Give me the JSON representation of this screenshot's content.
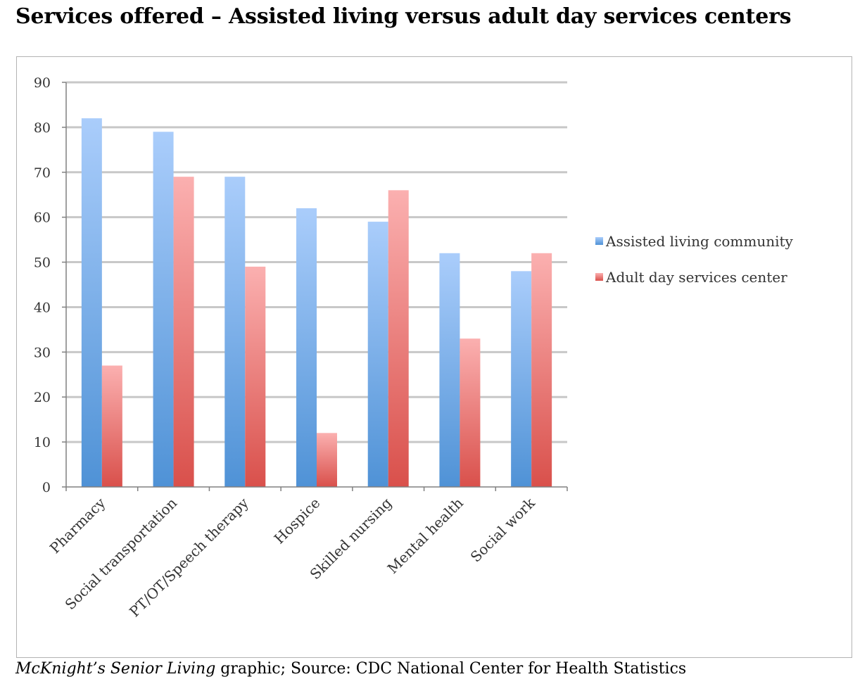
{
  "title": "Services offered – Assisted living versus adult day services centers",
  "caption": {
    "publication": "McKnight’s Senior Living",
    "text": " graphic; Source: CDC National Center for Health Statistics"
  },
  "chart_data": {
    "type": "bar",
    "categories": [
      "Pharmacy",
      "Social transportation",
      "PT/OT/Speech therapy",
      "Hospice",
      "Skilled nursing",
      "Mental health",
      "Social work"
    ],
    "series": [
      {
        "name": "Assisted living community",
        "values": [
          82,
          79,
          69,
          62,
          59,
          52,
          48
        ],
        "color": "#5b9bd5"
      },
      {
        "name": "Adult day services center",
        "values": [
          27,
          69,
          49,
          12,
          66,
          33,
          52
        ],
        "color": "#e05a55"
      }
    ],
    "ylim": [
      0,
      90
    ],
    "yticks": [
      0,
      10,
      20,
      30,
      40,
      50,
      60,
      70,
      80,
      90
    ],
    "grid": true,
    "legend": "right"
  }
}
